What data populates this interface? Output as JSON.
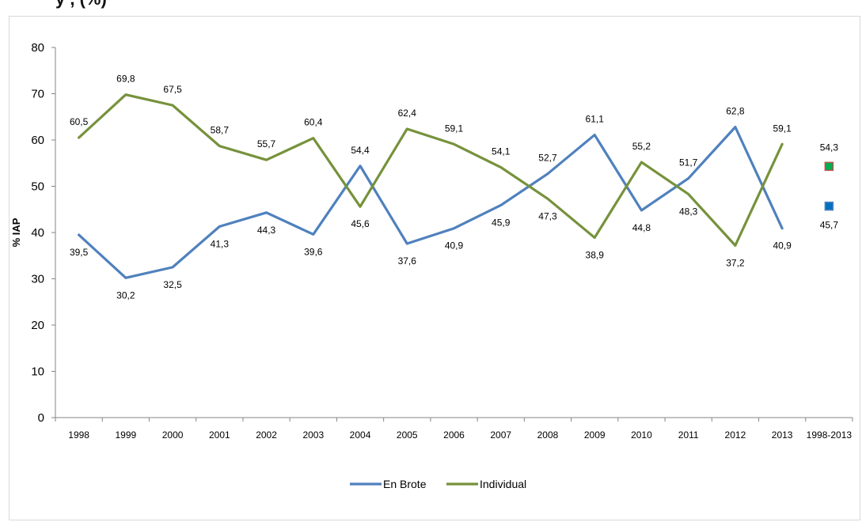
{
  "chart_data": {
    "type": "line",
    "title": "y                                                            , (%)",
    "ylabel": "% IAP",
    "xlabel": "",
    "ylim": [
      0,
      80
    ],
    "yticks": [
      0,
      10,
      20,
      30,
      40,
      50,
      60,
      70,
      80
    ],
    "categories": [
      "1998",
      "1999",
      "2000",
      "2001",
      "2002",
      "2003",
      "2004",
      "2005",
      "2006",
      "2007",
      "2008",
      "2009",
      "2010",
      "2011",
      "2012",
      "2013",
      "1998-2013"
    ],
    "series": [
      {
        "name": "En Brote",
        "color": "#4f81bd",
        "values": [
          39.5,
          30.2,
          32.5,
          41.3,
          44.3,
          39.6,
          54.4,
          37.6,
          40.9,
          45.9,
          52.7,
          61.1,
          44.8,
          51.7,
          62.8,
          40.9,
          null
        ],
        "labels": [
          "39,5",
          "30,2",
          "32,5",
          "41,3",
          "44,3",
          "39,6",
          "54,4",
          "37,6",
          "40,9",
          "45,9",
          "52,7",
          "61,1",
          "44,8",
          "51,7",
          "62,8",
          "40,9",
          ""
        ]
      },
      {
        "name": "Individual",
        "color": "#76923c",
        "values": [
          60.5,
          69.8,
          67.5,
          58.7,
          55.7,
          60.4,
          45.6,
          62.4,
          59.1,
          54.1,
          47.3,
          38.9,
          55.2,
          48.3,
          37.2,
          59.1,
          null
        ],
        "labels": [
          "60,5",
          "69,8",
          "67,5",
          "58,7",
          "55,7",
          "60,4",
          "45,6",
          "62,4",
          "59,1",
          "54,1",
          "47,3",
          "38,9",
          "55,2",
          "48,3",
          "37,2",
          "59,1",
          ""
        ]
      }
    ],
    "summary_points": [
      {
        "category": "1998-2013",
        "series": "Individual",
        "value": 54.3,
        "label": "54,3",
        "fill": "#00b050",
        "stroke": "#c0504d"
      },
      {
        "category": "1998-2013",
        "series": "En Brote",
        "value": 45.7,
        "label": "45,7",
        "fill": "#0070c0",
        "stroke": "#4f81bd"
      }
    ],
    "grid": false,
    "legend_position": "bottom"
  }
}
